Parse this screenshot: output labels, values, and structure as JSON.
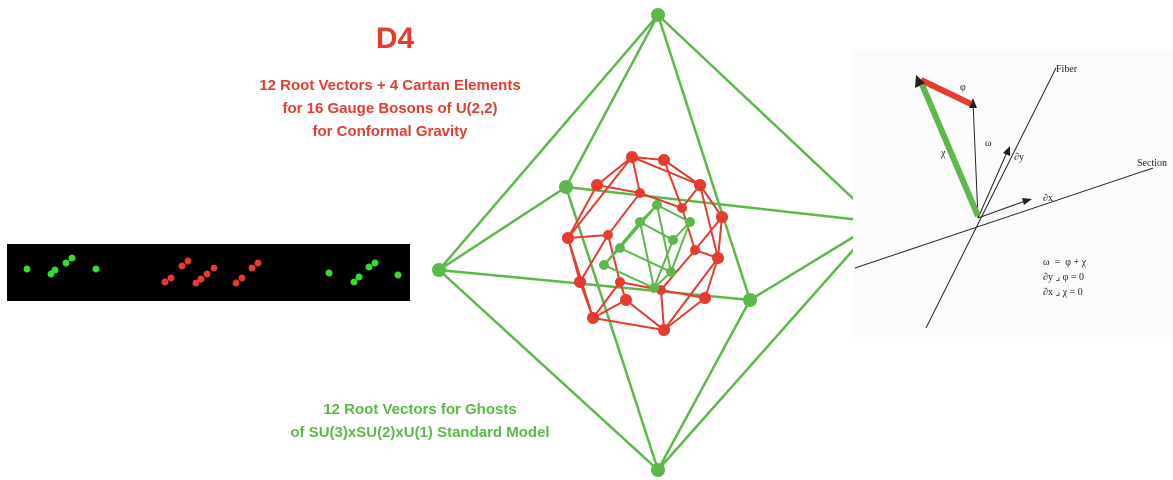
{
  "title": "D4",
  "red_caption": [
    "12 Root Vectors + 4 Cartan Elements",
    "for 16 Gauge Bosons of U(2,2)",
    "for Conformal Gravity"
  ],
  "green_caption": [
    "12 Root Vectors for Ghosts",
    "of SU(3)xSU(2)xU(1) Standard Model"
  ],
  "fiber_diagram": {
    "fiber_label": "Fiber",
    "section_label": "Section",
    "phi_label": "φ",
    "omega_label": "ω",
    "chi_label": "χ",
    "dy_label": "∂y",
    "dx_label": "∂x",
    "equations": [
      "ω  =  φ + χ",
      "∂y ⌟ φ = 0",
      "∂x ⌟ χ = 0"
    ]
  },
  "colors": {
    "red": "#e63b2e",
    "green": "#5cb84a",
    "bright_green": "#33dd33",
    "strip_background": "#000000"
  }
}
